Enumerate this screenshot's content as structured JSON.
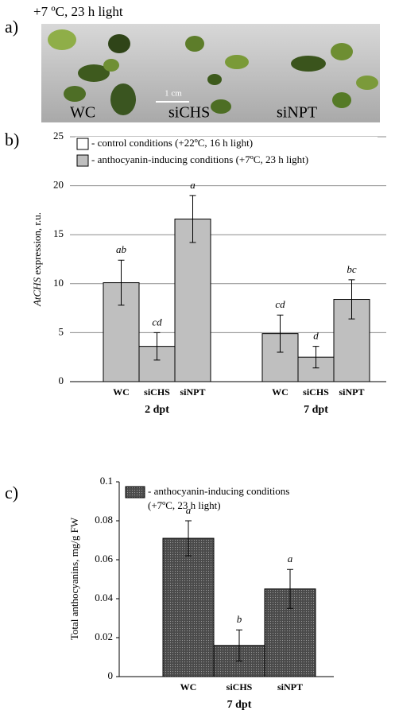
{
  "photo": {
    "label": "a)",
    "caption": "+7 ºC, 23 h light",
    "plants": [
      "WC",
      "siCHS",
      "siNPT"
    ],
    "scale": "1 cm"
  },
  "chart_data": [
    {
      "type": "bar",
      "panel_label": "b)",
      "ylabel_italic": "AtCHS",
      "ylabel": " expression, r.u.",
      "ylim": [
        0,
        25
      ],
      "yticks": [
        0,
        5,
        10,
        15,
        20,
        25
      ],
      "grid": true,
      "color": "#bfbfbf",
      "legend": [
        {
          "name": "- control conditions (+22ºC, 16 h light)",
          "color": "#ffffff"
        },
        {
          "name": "- anthocyanin-inducing conditions (+7ºC, 23 h light)",
          "color": "#bfbfbf"
        }
      ],
      "groups": [
        {
          "name": "2 dpt",
          "categories": [
            "WC",
            "siCHS",
            "siNPT"
          ],
          "values": [
            10.1,
            3.6,
            16.6
          ],
          "errors": [
            2.3,
            1.4,
            2.4
          ],
          "letters": [
            "ab",
            "cd",
            "a"
          ]
        },
        {
          "name": "7 dpt",
          "categories": [
            "WC",
            "siCHS",
            "siNPT"
          ],
          "values": [
            4.9,
            2.5,
            8.4
          ],
          "errors": [
            1.9,
            1.1,
            2.0
          ],
          "letters": [
            "cd",
            "d",
            "bc"
          ]
        }
      ]
    },
    {
      "type": "bar",
      "panel_label": "c)",
      "ylabel": "Total anthocyanins,  mg/g FW",
      "ylim": [
        0,
        0.1
      ],
      "yticks": [
        0,
        0.02,
        0.04,
        0.06,
        0.08,
        0.1
      ],
      "grid": false,
      "color": "#555555",
      "legend": [
        {
          "name": [
            "- anthocyanin-inducing conditions",
            "(+7ºC, 23 h light)"
          ],
          "color": "#555555"
        }
      ],
      "groups": [
        {
          "name": "7 dpt",
          "categories": [
            "WC",
            "siCHS",
            "siNPT"
          ],
          "values": [
            0.071,
            0.016,
            0.045
          ],
          "errors": [
            0.009,
            0.008,
            0.01
          ],
          "letters": [
            "a",
            "b",
            "a"
          ]
        }
      ]
    }
  ]
}
